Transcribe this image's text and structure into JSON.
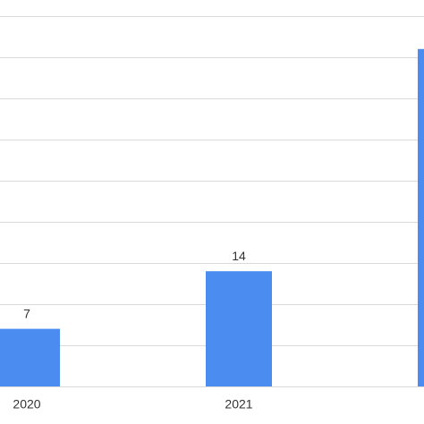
{
  "chart_data": {
    "type": "bar",
    "categories": [
      "2020",
      "2021",
      null
    ],
    "values": [
      7,
      14,
      41
    ],
    "color": "#4a8cf0",
    "ylim": [
      0,
      45
    ],
    "yticks": [
      0,
      5,
      10,
      15,
      20,
      25,
      30,
      35,
      40,
      45
    ],
    "grid": true
  }
}
